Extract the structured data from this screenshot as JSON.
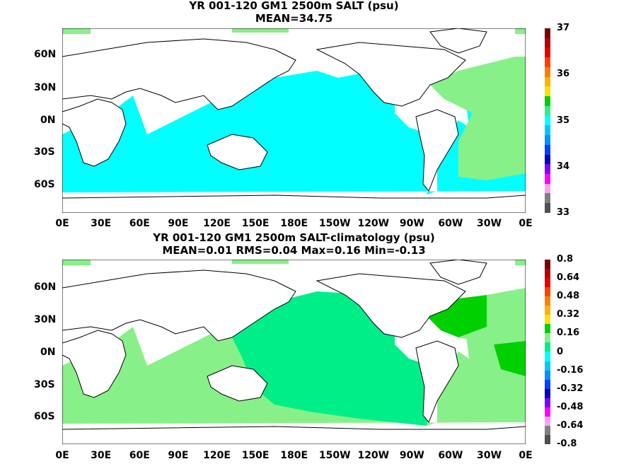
{
  "panels": [
    {
      "title1": "YR 001-120 GM1 2500m SALT (psu)",
      "title2": "MEAN=34.75",
      "colorbar_labels": [
        "37",
        "36",
        "35",
        "34",
        "33"
      ],
      "colorbar_colors": [
        "#7a0000",
        "#b40000",
        "#e60000",
        "#ff4000",
        "#ff7f00",
        "#ffb000",
        "#ffe000",
        "#00d000",
        "#33ee88",
        "#00ffff",
        "#00c8ff",
        "#0090ff",
        "#0040ff",
        "#0000c0",
        "#8000ff",
        "#ff00ff",
        "#ffa0ff",
        "#808080",
        "#505050"
      ]
    },
    {
      "title1": "YR 001-120 GM1 2500m SALT-climatology (psu)",
      "title2": "MEAN=0.01   RMS=0.04   Max=0.16   Min=-0.13",
      "colorbar_labels": [
        "0.8",
        "0.64",
        "0.48",
        "0.32",
        "0.16",
        "0",
        "-0.16",
        "-0.32",
        "-0.48",
        "-0.64",
        "-0.8"
      ],
      "colorbar_colors": [
        "#7a0000",
        "#b40000",
        "#e60000",
        "#ff4000",
        "#ff7f00",
        "#ffb000",
        "#ffe000",
        "#00d000",
        "#88f088",
        "#00ee88",
        "#00ffff",
        "#00c8ff",
        "#0090ff",
        "#0040ff",
        "#0000c0",
        "#8000ff",
        "#ff00ff",
        "#ffa0ff",
        "#808080",
        "#505050"
      ]
    }
  ],
  "lat_labels": [
    "60N",
    "30N",
    "0N",
    "30S",
    "60S"
  ],
  "lon_labels": [
    "0E",
    "30E",
    "60E",
    "90E",
    "120E",
    "150E",
    "180E",
    "150W",
    "120W",
    "90W",
    "60W",
    "30W",
    "0E"
  ],
  "colors": {
    "ocean1": "#00ffff",
    "atlantic1": "#88f088",
    "ocean2": "#88f088",
    "pacific2": "#00ee88",
    "atlantic2": "#00d000"
  }
}
